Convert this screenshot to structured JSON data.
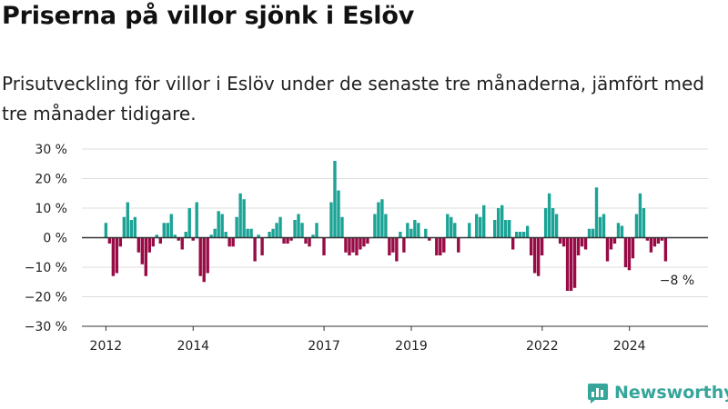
{
  "header": {
    "title": "Priserna på villor sjönk i Eslöv",
    "subtitle": "Prisutveckling för villor i Eslöv under de senaste tre månaderna, jämfört med tre månader tidigare."
  },
  "brand": {
    "name": "Newsworthy",
    "logo_icon": "bar-chart-speech-bubble-icon"
  },
  "colors": {
    "positive": "#1ba396",
    "negative": "#980b45",
    "grid": "#dddddd",
    "baseline": "#333333",
    "brand": "#36a59a"
  },
  "chart_data": {
    "type": "bar",
    "title": "",
    "xlabel": "",
    "ylabel": "",
    "ylim": [
      -30,
      30
    ],
    "xlim": [
      2011.45,
      2025.8
    ],
    "y_ticks": [
      -30,
      -20,
      -10,
      0,
      10,
      20,
      30
    ],
    "y_tick_labels": [
      "−30 %",
      "−20 %",
      "−10 %",
      "0 %",
      "10 %",
      "20 %",
      "30 %"
    ],
    "x_ticks": [
      2012,
      2014,
      2017,
      2019,
      2022,
      2024
    ],
    "x_tick_labels": [
      "2012",
      "2014",
      "2017",
      "2019",
      "2022",
      "2024"
    ],
    "grid": true,
    "annotation": {
      "text": "−8 %"
    },
    "series": [
      {
        "x_start": 2012.0,
        "x_step": 0.0833,
        "values": [
          5,
          -2,
          -13,
          -12,
          -3,
          7,
          12,
          6,
          7,
          -5,
          -9,
          -13,
          -5,
          -3,
          1,
          -2,
          5,
          5,
          8,
          1,
          -1,
          -4,
          2,
          10,
          -1,
          12,
          -13,
          -15,
          -12,
          1,
          3,
          9,
          8,
          2,
          -3,
          -3,
          7,
          15,
          13,
          3,
          3,
          -8,
          1,
          -6,
          0,
          2,
          3,
          5,
          7,
          -2,
          -2,
          -1,
          6,
          8,
          5,
          -2,
          -3,
          1,
          5,
          0,
          -6,
          0,
          12,
          26,
          16,
          7,
          -5,
          -6,
          -5,
          -6,
          -4,
          -3,
          -2,
          0,
          8,
          12,
          13,
          8,
          -6,
          -5,
          -8,
          2,
          -5,
          5,
          3,
          6,
          5,
          0,
          3,
          -1,
          0,
          -6,
          -6,
          -5,
          8,
          7,
          5,
          -5,
          0,
          0,
          5,
          0,
          8,
          7,
          11,
          0,
          0,
          6,
          10,
          11,
          6,
          6,
          -4,
          2,
          2,
          2,
          4,
          -6,
          -12,
          -13,
          -6,
          10,
          15,
          10,
          8,
          -2,
          -3,
          -18,
          -18,
          -17,
          -6,
          -3,
          -4,
          3,
          3,
          17,
          7,
          8,
          -8,
          -4,
          -2,
          5,
          4,
          -10,
          -11,
          -7,
          8,
          15,
          10,
          -1,
          -5,
          -3,
          -2,
          -1,
          -8
        ]
      }
    ]
  }
}
